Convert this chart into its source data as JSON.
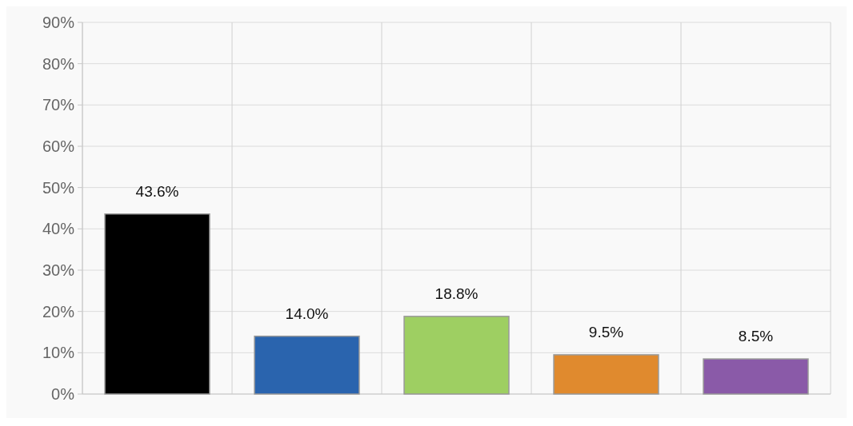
{
  "chart_data": {
    "type": "bar",
    "categories": [
      null,
      null,
      null,
      null,
      null
    ],
    "values": [
      43.6,
      14.0,
      18.8,
      9.5,
      8.5
    ],
    "colors": [
      "#000000",
      "#2a64ae",
      "#9ecf62",
      "#e08a2e",
      "#8a5aa8"
    ],
    "value_labels": [
      "43.6%",
      "14.0%",
      "18.8%",
      "9.5%",
      "8.5%"
    ],
    "ylim": [
      0,
      90
    ],
    "yticks": [
      {
        "value": 0,
        "label": "0%"
      },
      {
        "value": 10,
        "label": "10%"
      },
      {
        "value": 20,
        "label": "20%"
      },
      {
        "value": 30,
        "label": "30%"
      },
      {
        "value": 40,
        "label": "40%"
      },
      {
        "value": 50,
        "label": "50%"
      },
      {
        "value": 60,
        "label": "60%"
      },
      {
        "value": 70,
        "label": "70%"
      },
      {
        "value": 80,
        "label": "80%"
      },
      {
        "value": 90,
        "label": "90%"
      }
    ],
    "grid": true
  }
}
